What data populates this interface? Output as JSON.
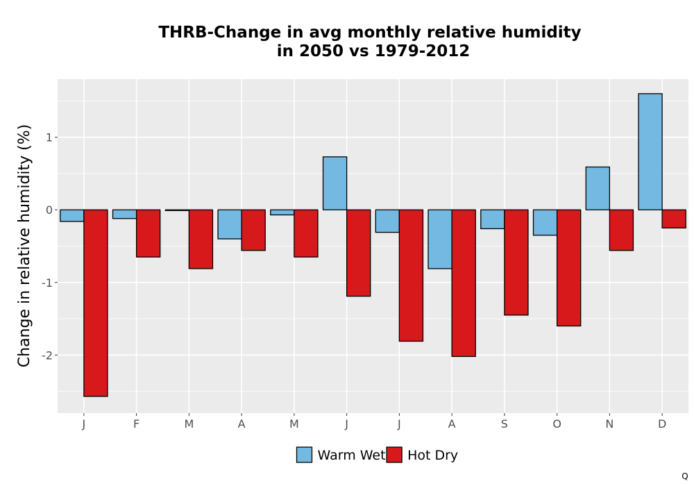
{
  "chart_data": {
    "type": "bar",
    "title": "THRB-Change in avg monthly relative humidity",
    "subtitle": "in 2050 vs 1979-2012",
    "xlabel": "",
    "ylabel": "Change in relative humidity (%)",
    "categories": [
      "J",
      "F",
      "M",
      "A",
      "M",
      "J",
      "J",
      "A",
      "S",
      "O",
      "N",
      "D"
    ],
    "series": [
      {
        "name": "Warm Wet",
        "color": "#74b9e2",
        "values": [
          -0.16,
          -0.12,
          -0.01,
          -0.4,
          -0.07,
          0.73,
          -0.31,
          -0.81,
          -0.26,
          -0.35,
          0.59,
          1.6
        ]
      },
      {
        "name": "Hot Dry",
        "color": "#d7191c",
        "values": [
          -2.57,
          -0.65,
          -0.81,
          -0.56,
          -0.65,
          -1.19,
          -1.81,
          -2.02,
          -1.45,
          -1.6,
          -0.56,
          -0.25
        ]
      }
    ],
    "ylim": [
      -2.8,
      1.8
    ],
    "yticks": [
      -2,
      -1,
      0,
      1
    ],
    "ytick_labels": [
      "-2",
      "-1",
      "0",
      "1"
    ],
    "grid": true,
    "panel_background": "#ebebeb",
    "legend_position": "bottom"
  },
  "corner_mark": "Q"
}
